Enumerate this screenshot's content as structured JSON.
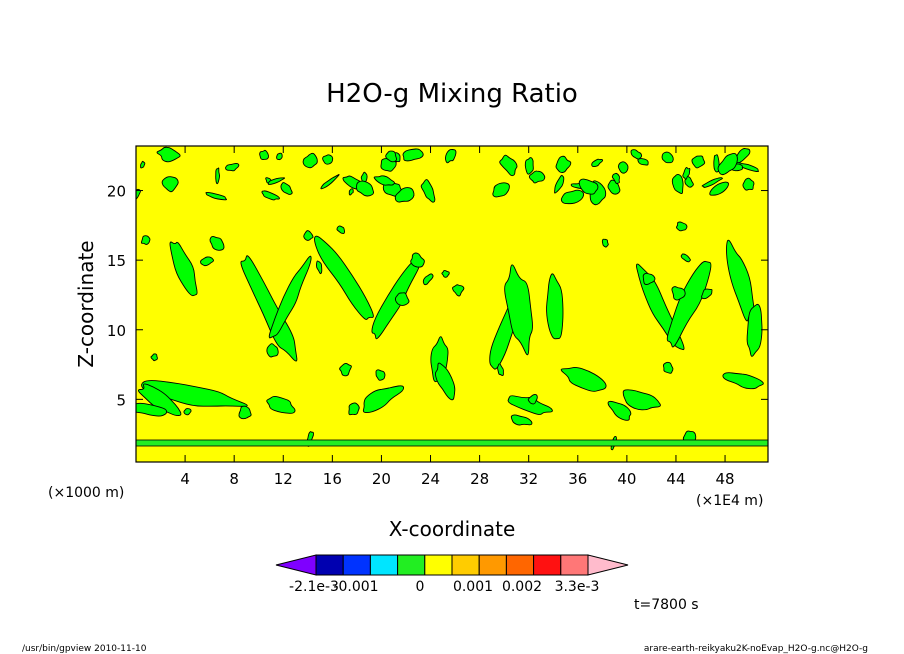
{
  "chart_data": {
    "type": "heatmap",
    "title": "H2O-g Mixing Ratio",
    "xlabel": "X-coordinate",
    "ylabel": "Z-coordinate",
    "x_unit": "(×1000 m)",
    "x_unit_right": "(×1E4 m)",
    "xlim": [
      0,
      51500
    ],
    "ylim": [
      0.5,
      23.2
    ],
    "x_ticks": [
      4,
      8,
      12,
      16,
      20,
      24,
      28,
      32,
      36,
      40,
      44,
      48
    ],
    "y_ticks": [
      5,
      10,
      15,
      20
    ],
    "background_level_color": "#ffff00",
    "anomaly_color": "#00ff00",
    "contour_color": "#000000",
    "colorbar": {
      "colors": [
        "#7f00ff",
        "#0000b0",
        "#0033ff",
        "#00e5ff",
        "#22ee22",
        "#ffff00",
        "#ffcc00",
        "#ff9900",
        "#ff6600",
        "#ff1111",
        "#ff7777",
        "#ffbbcc"
      ],
      "labels": [
        "-2.1e-3",
        "-0.001",
        "0",
        "0.001",
        "0.002",
        "3.3e-3"
      ]
    },
    "time_label": "t=7800 s"
  },
  "footer": {
    "left": "/usr/bin/gpview   2010-11-10",
    "right": "arare-earth-reikyaku2K-noEvap_H2O-g.nc@H2O-g"
  }
}
